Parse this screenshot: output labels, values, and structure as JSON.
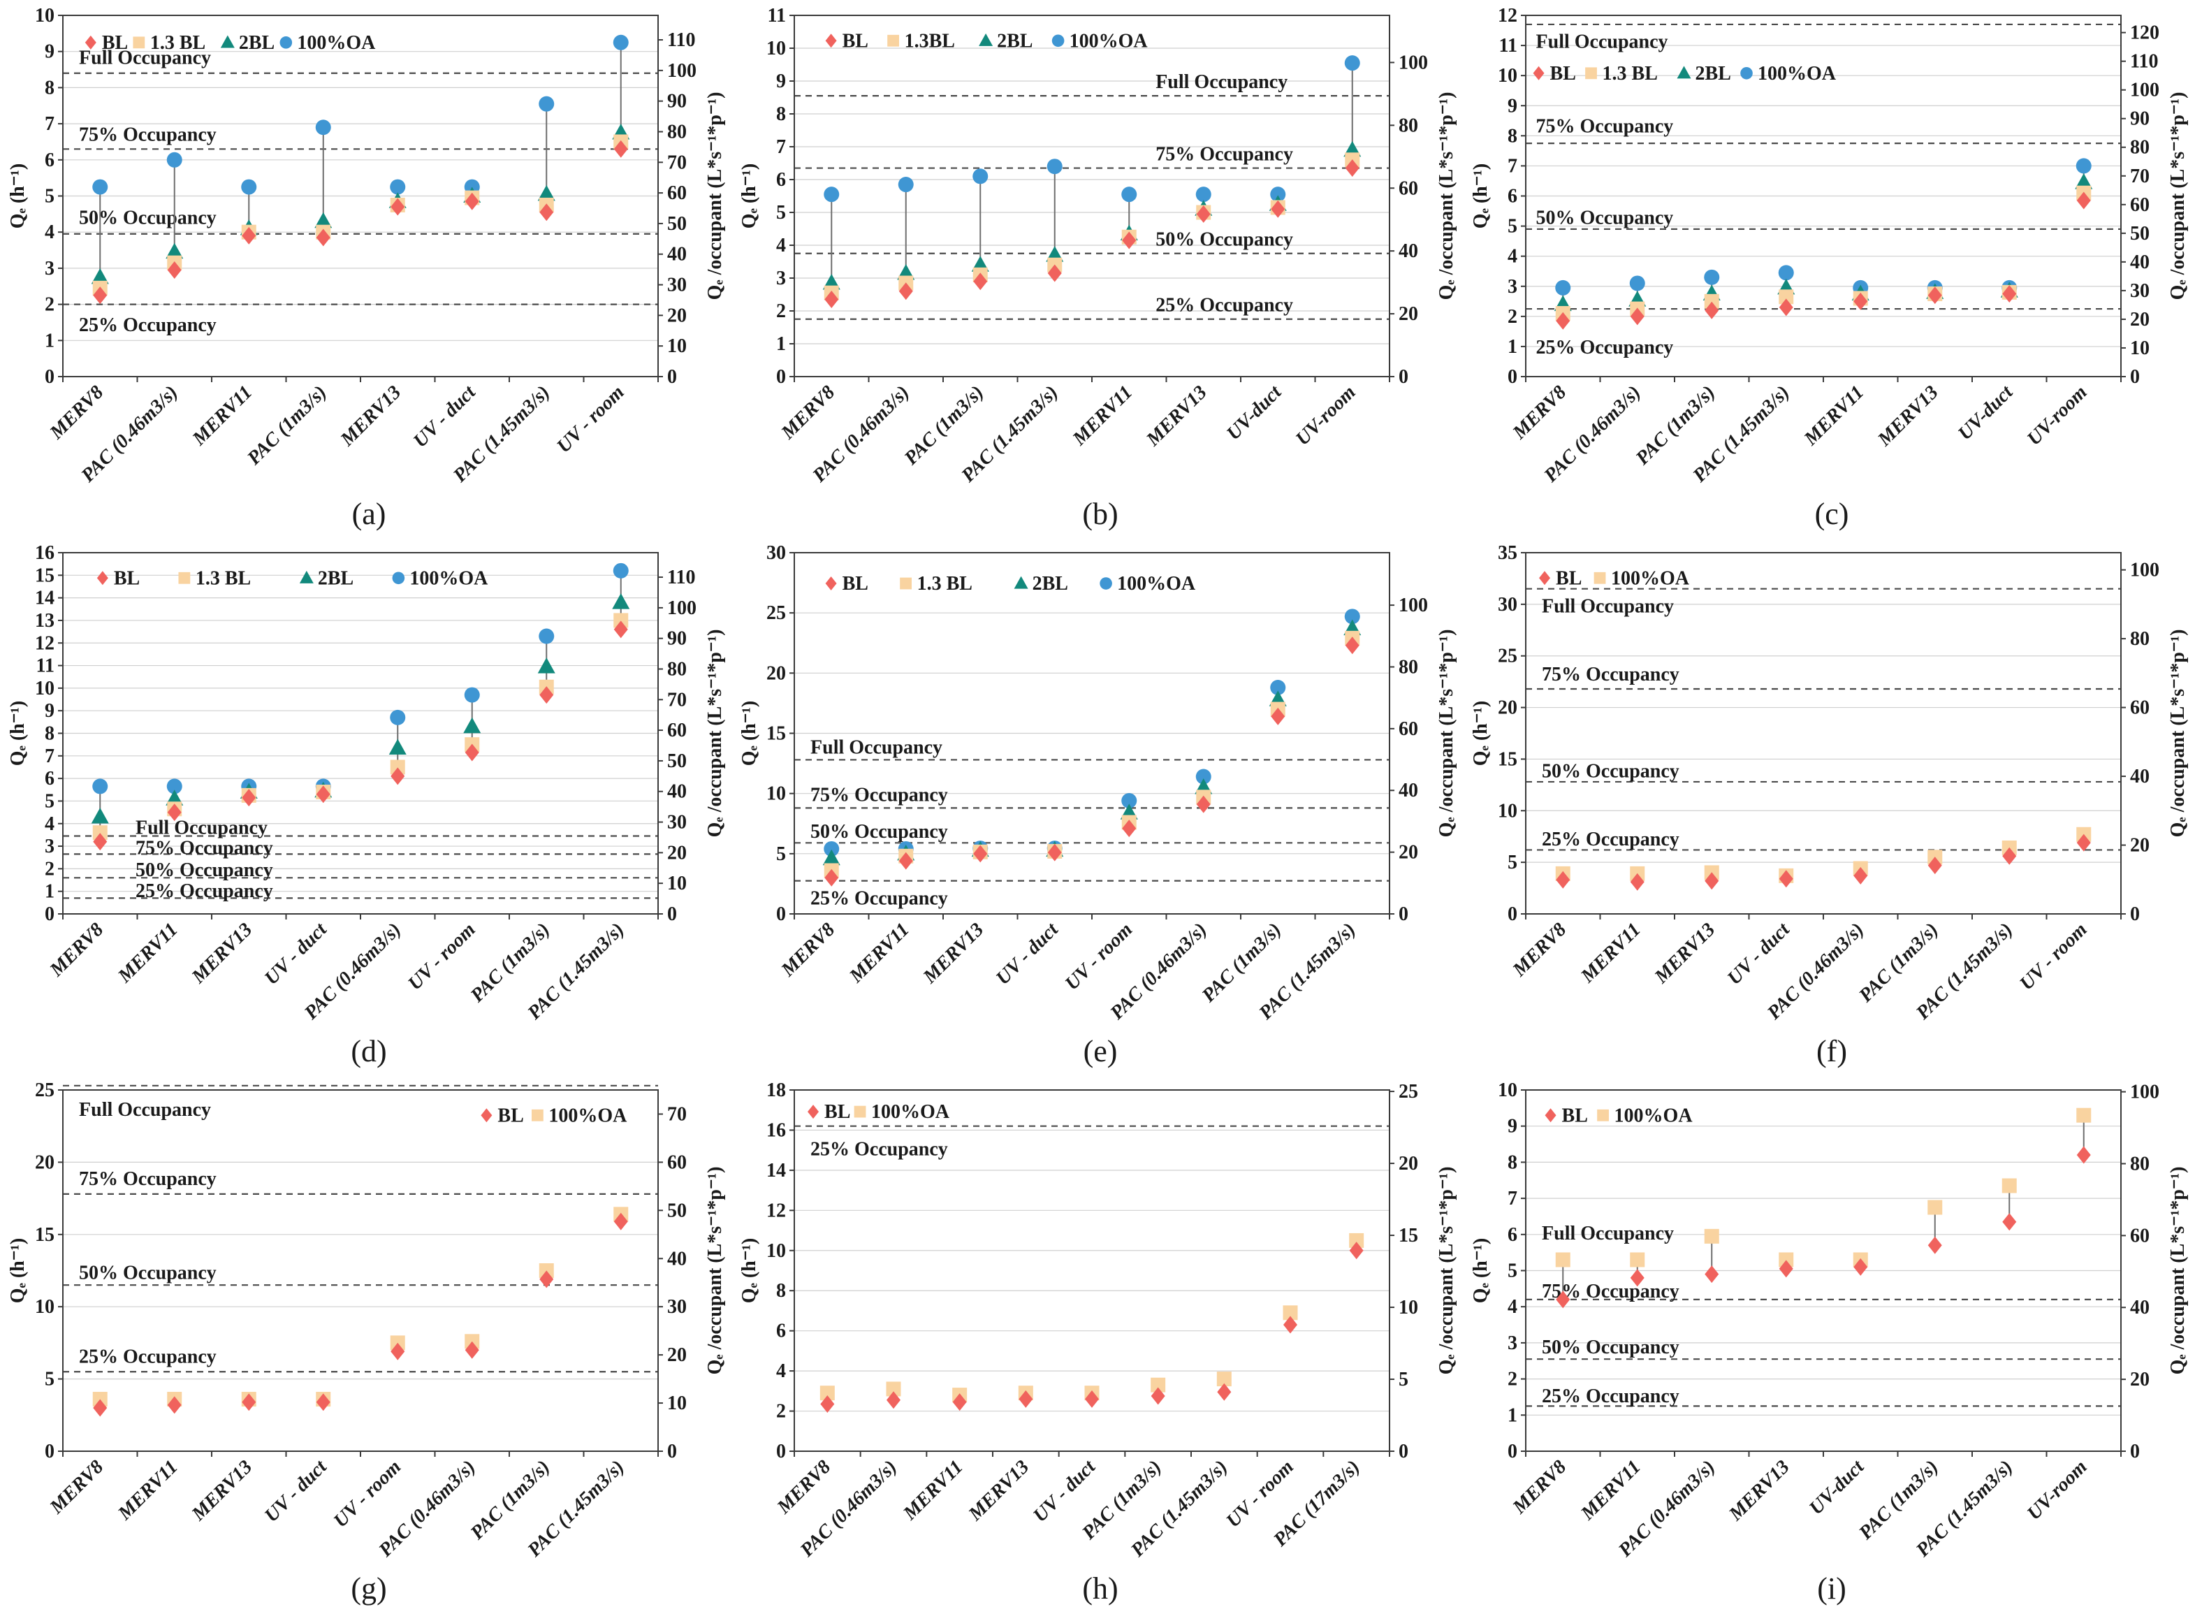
{
  "page": {
    "background": "#ffffff"
  },
  "colors": {
    "BL": "#f0625d",
    "BL13": "#f9d3a0",
    "BL2": "#12897c",
    "OA": "#3f96d3",
    "grid": "#cfcfcf",
    "dash": "#4a4a4a",
    "axis": "#3a3a3a",
    "connector": "#6e6e6e",
    "text": "#1a1a1a"
  },
  "axis_titles": {
    "left": "Qₑ (h⁻¹)",
    "right": "Qₑ /occupant (L*s⁻¹*p⁻¹)"
  },
  "chart_data": [
    {
      "id": "a",
      "caption": "(a)",
      "type": "scatter",
      "categories": [
        "MERV8",
        "PAC (0.46m3/s)",
        "MERV11",
        "PAC (1m3/s)",
        "MERV13",
        "UV - duct",
        "PAC (1.45m3/s)",
        "UV - room"
      ],
      "series": [
        {
          "name": "BL",
          "marker": "diamond",
          "color_key": "BL",
          "values": [
            2.25,
            2.95,
            3.9,
            3.85,
            4.7,
            4.85,
            4.55,
            6.3
          ]
        },
        {
          "name": "1.3 BL",
          "marker": "square",
          "color_key": "BL13",
          "values": [
            2.45,
            3.15,
            4.0,
            4.0,
            4.75,
            4.95,
            4.75,
            6.5
          ]
        },
        {
          "name": "2BL",
          "marker": "triangle",
          "color_key": "BL2",
          "values": [
            2.75,
            3.45,
            4.1,
            4.3,
            4.85,
            5.0,
            5.05,
            6.75
          ]
        },
        {
          "name": "100%OA",
          "marker": "circle",
          "color_key": "OA",
          "values": [
            5.25,
            6.0,
            5.25,
            6.9,
            5.25,
            5.25,
            7.55,
            9.25
          ]
        }
      ],
      "left_axis": {
        "min": 0,
        "max": 10,
        "step": 1
      },
      "right_axis": {
        "top_value": 118,
        "tick_step": 10,
        "tick_max": 110
      },
      "dashed_lines": [
        {
          "v": 8.4,
          "label": "Full Occupancy",
          "label_v": 8.85,
          "label_x": 0.02
        },
        {
          "v": 6.3,
          "label": "75% Occupancy",
          "label_v": 6.72,
          "label_x": 0.02
        },
        {
          "v": 3.95,
          "label": "50% Occupancy",
          "label_v": 4.42,
          "label_x": 0.02
        },
        {
          "v": 2.0,
          "label": "25% Occupancy",
          "label_v": 1.45,
          "label_x": 0.02
        }
      ],
      "legend": {
        "x": 0.035,
        "y": 0.05,
        "gap": 14
      }
    },
    {
      "id": "b",
      "caption": "(b)",
      "type": "scatter",
      "categories": [
        "MERV8",
        "PAC (0.46m3/s)",
        "PAC (1m3/s)",
        "PAC (1.45m3/s)",
        "MERV11",
        "MERV13",
        "UV-duct",
        "UV-room"
      ],
      "series": [
        {
          "name": "BL",
          "marker": "diamond",
          "color_key": "BL",
          "values": [
            2.35,
            2.6,
            2.9,
            3.15,
            4.15,
            4.95,
            5.1,
            6.35
          ]
        },
        {
          "name": "1.3BL",
          "marker": "square",
          "color_key": "BL13",
          "values": [
            2.55,
            2.85,
            3.1,
            3.4,
            4.25,
            5.0,
            5.15,
            6.6
          ]
        },
        {
          "name": "2BL",
          "marker": "triangle",
          "color_key": "BL2",
          "values": [
            2.85,
            3.15,
            3.4,
            3.7,
            4.35,
            5.1,
            5.25,
            6.9
          ]
        },
        {
          "name": "100%OA",
          "marker": "circle",
          "color_key": "OA",
          "values": [
            5.55,
            5.85,
            6.1,
            6.4,
            5.55,
            5.55,
            5.55,
            9.55
          ]
        }
      ],
      "left_axis": {
        "min": 0,
        "max": 11,
        "step": 1
      },
      "right_axis": {
        "top_value": 115,
        "tick_step": 20,
        "tick_max": 100
      },
      "dashed_lines": [
        {
          "v": 8.55,
          "label": "Full Occupancy",
          "label_v": 9.0,
          "label_x": 0.6
        },
        {
          "v": 6.35,
          "label": "75% Occupancy",
          "label_v": 6.8,
          "label_x": 0.6
        },
        {
          "v": 3.75,
          "label": "50% Occupancy",
          "label_v": 4.2,
          "label_x": 0.6
        },
        {
          "v": 1.75,
          "label": "25% Occupancy",
          "label_v": 2.2,
          "label_x": 0.6
        }
      ],
      "legend": {
        "x": 0.05,
        "y": 0.045,
        "gap": 34
      }
    },
    {
      "id": "c",
      "caption": "(c)",
      "type": "scatter",
      "categories": [
        "MERV8",
        "PAC (0.46m3/s)",
        "PAC (1m3/s)",
        "PAC (1.45m3/s)",
        "MERV11",
        "MERV13",
        "UV-duct",
        "UV-room"
      ],
      "series": [
        {
          "name": "BL",
          "marker": "diamond",
          "color_key": "BL",
          "values": [
            1.85,
            2.0,
            2.2,
            2.3,
            2.5,
            2.7,
            2.75,
            5.85
          ]
        },
        {
          "name": "1.3 BL",
          "marker": "square",
          "color_key": "BL13",
          "values": [
            2.1,
            2.25,
            2.5,
            2.65,
            2.6,
            2.75,
            2.8,
            6.1
          ]
        },
        {
          "name": "2BL",
          "marker": "triangle",
          "color_key": "BL2",
          "values": [
            2.4,
            2.55,
            2.75,
            2.95,
            2.75,
            2.8,
            2.85,
            6.45
          ]
        },
        {
          "name": "100%OA",
          "marker": "circle",
          "color_key": "OA",
          "values": [
            2.95,
            3.1,
            3.3,
            3.45,
            2.95,
            2.95,
            2.95,
            7.0
          ]
        }
      ],
      "left_axis": {
        "min": 0,
        "max": 12,
        "step": 1
      },
      "right_axis": {
        "top_value": 126,
        "tick_step": 10,
        "tick_max": 120
      },
      "dashed_lines": [
        {
          "v": 11.7,
          "label": "Full Occupancy",
          "label_v": 11.15,
          "label_x": 0.01
        },
        {
          "v": 7.75,
          "label": "75% Occupancy",
          "label_v": 8.35,
          "label_x": 0.01
        },
        {
          "v": 4.9,
          "label": "50% Occupancy",
          "label_v": 5.3,
          "label_x": 0.01
        },
        {
          "v": 2.25,
          "label": "25% Occupancy",
          "label_v": 1.0,
          "label_x": 0.01
        }
      ],
      "legend": {
        "x": 0.01,
        "y": 0.135,
        "gap": 20
      }
    },
    {
      "id": "d",
      "caption": "(d)",
      "type": "scatter",
      "categories": [
        "MERV8",
        "MERV11",
        "MERV13",
        "UV - duct",
        "PAC (0.46m3/s)",
        "UV - room",
        "PAC (1m3/s)",
        "PAC (1.45m3/s)"
      ],
      "series": [
        {
          "name": "BL",
          "marker": "diamond",
          "color_key": "BL",
          "values": [
            3.2,
            4.5,
            5.15,
            5.3,
            6.1,
            7.15,
            9.7,
            12.6
          ]
        },
        {
          "name": "1.3 BL",
          "marker": "square",
          "color_key": "BL13",
          "values": [
            3.6,
            4.65,
            5.25,
            5.4,
            6.5,
            7.5,
            10.05,
            13.0
          ]
        },
        {
          "name": "2BL",
          "marker": "triangle",
          "color_key": "BL2",
          "values": [
            4.3,
            5.1,
            5.4,
            5.45,
            7.35,
            8.3,
            10.95,
            13.8
          ]
        },
        {
          "name": "100%OA",
          "marker": "circle",
          "color_key": "OA",
          "values": [
            5.65,
            5.65,
            5.65,
            5.65,
            8.7,
            9.7,
            12.3,
            15.2
          ]
        }
      ],
      "left_axis": {
        "min": 0,
        "max": 16,
        "step": 1
      },
      "right_axis": {
        "top_value": 118,
        "tick_step": 10,
        "tick_max": 110
      },
      "dashed_lines": [
        {
          "v": 3.45,
          "label": "Full Occupancy",
          "label_v": 3.85,
          "label_x": 0.115
        },
        {
          "v": 2.65,
          "label": "75% Occupancy",
          "label_v": 2.95,
          "label_x": 0.115
        },
        {
          "v": 1.6,
          "label": "50% Occupancy",
          "label_v": 1.98,
          "label_x": 0.115
        },
        {
          "v": 0.7,
          "label": "25% Occupancy",
          "label_v": 1.05,
          "label_x": 0.115
        }
      ],
      "legend": {
        "x": 0.055,
        "y": 0.045,
        "gap": 62
      }
    },
    {
      "id": "e",
      "caption": "(e)",
      "type": "scatter",
      "categories": [
        "MERV8",
        "MERV11",
        "MERV13",
        "UV - duct",
        "UV - room",
        "PAC (0.46m3/s)",
        "PAC (1m3/s)",
        "PAC (1.45m3/s)"
      ],
      "series": [
        {
          "name": "BL",
          "marker": "diamond",
          "color_key": "BL",
          "values": [
            3.0,
            4.4,
            5.0,
            5.1,
            7.1,
            9.1,
            16.4,
            22.3
          ]
        },
        {
          "name": "1.3 BL",
          "marker": "square",
          "color_key": "BL13",
          "values": [
            3.6,
            4.8,
            5.15,
            5.2,
            7.6,
            9.7,
            17.0,
            22.9
          ]
        },
        {
          "name": "2BL",
          "marker": "triangle",
          "color_key": "BL2",
          "values": [
            4.6,
            5.0,
            5.3,
            5.3,
            8.4,
            10.5,
            17.8,
            23.7
          ]
        },
        {
          "name": "100%OA",
          "marker": "circle",
          "color_key": "OA",
          "values": [
            5.4,
            5.4,
            5.45,
            5.45,
            9.4,
            11.4,
            18.8,
            24.7
          ]
        }
      ],
      "left_axis": {
        "min": 0,
        "max": 30,
        "step": 5
      },
      "right_axis": {
        "top_value": 117,
        "tick_step": 20,
        "tick_max": 100
      },
      "dashed_lines": [
        {
          "v": 12.8,
          "label": "Full Occupancy",
          "label_v": 13.9,
          "label_x": 0.02
        },
        {
          "v": 8.8,
          "label": "75% Occupancy",
          "label_v": 9.95,
          "label_x": 0.02
        },
        {
          "v": 5.9,
          "label": "50% Occupancy",
          "label_v": 6.9,
          "label_x": 0.02
        },
        {
          "v": 2.75,
          "label": "25% Occupancy",
          "label_v": 1.35,
          "label_x": 0.02
        }
      ],
      "legend": {
        "x": 0.05,
        "y": 0.06,
        "gap": 52
      }
    },
    {
      "id": "f",
      "caption": "(f)",
      "type": "scatter",
      "categories": [
        "MERV8",
        "MERV11",
        "MERV13",
        "UV - duct",
        "PAC (0.46m3/s)",
        "PAC (1m3/s)",
        "PAC (1.45m3/s)",
        "UV - room"
      ],
      "series": [
        {
          "name": "BL",
          "marker": "diamond",
          "color_key": "BL",
          "values": [
            3.3,
            3.1,
            3.2,
            3.4,
            3.7,
            4.7,
            5.6,
            6.9
          ]
        },
        {
          "name": "100%OA",
          "marker": "square",
          "color_key": "BL13",
          "values": [
            3.9,
            3.9,
            4.0,
            3.7,
            4.4,
            5.5,
            6.4,
            7.7
          ]
        }
      ],
      "left_axis": {
        "min": 0,
        "max": 35,
        "step": 5
      },
      "right_axis": {
        "top_value": 105,
        "tick_step": 20,
        "tick_max": 100
      },
      "dashed_lines": [
        {
          "v": 31.5,
          "label": "Full Occupancy",
          "label_v": 29.9,
          "label_x": 0.02
        },
        {
          "v": 21.8,
          "label": "75% Occupancy",
          "label_v": 23.3,
          "label_x": 0.02
        },
        {
          "v": 12.8,
          "label": "50% Occupancy",
          "label_v": 13.9,
          "label_x": 0.02
        },
        {
          "v": 6.2,
          "label": "25% Occupancy",
          "label_v": 7.3,
          "label_x": 0.02
        }
      ],
      "legend": {
        "x": 0.02,
        "y": 0.045,
        "gap": 24
      }
    },
    {
      "id": "g",
      "caption": "(g)",
      "type": "scatter",
      "categories": [
        "MERV8",
        "MERV11",
        "MERV13",
        "UV - duct",
        "UV - room",
        "PAC (0.46m3/s)",
        "PAC (1m3/s)",
        "PAC (1.45m3/s)"
      ],
      "series": [
        {
          "name": "BL",
          "marker": "diamond",
          "color_key": "BL",
          "values": [
            3.0,
            3.2,
            3.4,
            3.4,
            6.9,
            7.0,
            11.9,
            15.9
          ]
        },
        {
          "name": "100%OA",
          "marker": "square",
          "color_key": "BL13",
          "values": [
            3.6,
            3.6,
            3.6,
            3.6,
            7.5,
            7.6,
            12.5,
            16.4
          ]
        }
      ],
      "left_axis": {
        "min": 0,
        "max": 25,
        "step": 5
      },
      "right_axis": {
        "top_value": 75,
        "tick_step": 10,
        "tick_max": 70
      },
      "dashed_lines": [
        {
          "v": 25.3,
          "label": "Full Occupancy",
          "label_v": 23.7,
          "label_x": 0.02
        },
        {
          "v": 17.8,
          "label": "75% Occupancy",
          "label_v": 18.9,
          "label_x": 0.02
        },
        {
          "v": 11.5,
          "label": "50% Occupancy",
          "label_v": 12.4,
          "label_x": 0.02
        },
        {
          "v": 5.5,
          "label": "25% Occupancy",
          "label_v": 6.6,
          "label_x": 0.02
        }
      ],
      "legend": {
        "x": 0.7,
        "y": 0.045,
        "gap": 18
      }
    },
    {
      "id": "h",
      "caption": "(h)",
      "type": "scatter",
      "categories": [
        "MERV8",
        "PAC (0.46m3/s)",
        "MERV11",
        "MERV13",
        "UV - duct",
        "PAC (1m3/s)",
        "PAC (1.45m3/s)",
        "UV - room",
        "PAC (17m3/s)"
      ],
      "series": [
        {
          "name": "BL",
          "marker": "diamond",
          "color_key": "BL",
          "values": [
            2.35,
            2.55,
            2.45,
            2.6,
            2.6,
            2.75,
            2.95,
            6.3,
            10.0
          ]
        },
        {
          "name": "100%OA",
          "marker": "square",
          "color_key": "BL13",
          "values": [
            2.9,
            3.1,
            2.8,
            2.9,
            2.9,
            3.3,
            3.6,
            6.9,
            10.5
          ]
        }
      ],
      "left_axis": {
        "min": 0,
        "max": 18,
        "step": 2
      },
      "right_axis": {
        "top_value": 25.1,
        "tick_step": 5,
        "tick_max": 25
      },
      "dashed_lines": [
        {
          "v": 16.2,
          "label": "25% Occupancy",
          "label_v": 15.1,
          "label_x": 0.02
        }
      ],
      "legend": {
        "x": 0.02,
        "y": 0.035,
        "gap": 12
      }
    },
    {
      "id": "i",
      "caption": "(i)",
      "type": "scatter",
      "categories": [
        "MERV8",
        "MERV11",
        "PAC (0.46m3/s)",
        "MERV13",
        "UV-duct",
        "PAC (1m3/s)",
        "PAC (1.45m3/s)",
        "UV-room"
      ],
      "series": [
        {
          "name": "BL",
          "marker": "diamond",
          "color_key": "BL",
          "values": [
            4.2,
            4.8,
            4.9,
            5.05,
            5.1,
            5.7,
            6.35,
            8.2
          ]
        },
        {
          "name": "100%OA",
          "marker": "square",
          "color_key": "BL13",
          "values": [
            5.3,
            5.3,
            5.95,
            5.3,
            5.3,
            6.75,
            7.35,
            9.3
          ]
        }
      ],
      "left_axis": {
        "min": 0,
        "max": 10,
        "step": 1
      },
      "right_axis": {
        "top_value": 100.5,
        "tick_step": 20,
        "tick_max": 100
      },
      "dashed_lines": [
        {
          "v": null,
          "label": "Full Occupancy",
          "label_v": 6.05,
          "label_x": 0.02
        },
        {
          "v": 4.2,
          "label": "75% Occupancy",
          "label_v": 4.45,
          "label_x": 0.02
        },
        {
          "v": 2.55,
          "label": "50% Occupancy",
          "label_v": 2.9,
          "label_x": 0.02
        },
        {
          "v": 1.25,
          "label": "25% Occupancy",
          "label_v": 1.55,
          "label_x": 0.02
        }
      ],
      "legend": {
        "x": 0.03,
        "y": 0.045,
        "gap": 20
      }
    }
  ]
}
